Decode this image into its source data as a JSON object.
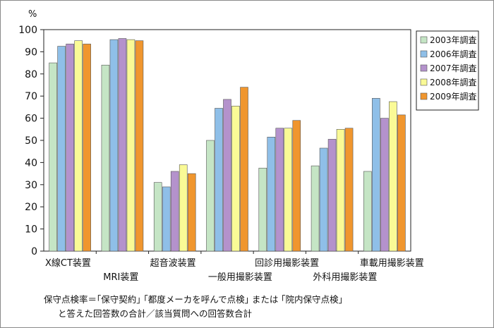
{
  "chart_data": {
    "type": "bar",
    "y_unit_label": "%",
    "ylim": [
      0,
      100
    ],
    "yticks": [
      0,
      10,
      20,
      30,
      40,
      50,
      60,
      70,
      80,
      90,
      100
    ],
    "grid": false,
    "legend_position": "right",
    "categories": [
      "X線CT装置",
      "MRI装置",
      "超音波装置",
      "一般用撮影装置",
      "回診用撮影装置",
      "外科用撮影装置",
      "車載用撮影装置"
    ],
    "series": [
      {
        "name": "2003年調査",
        "color": "#c5e5c5",
        "values": [
          85,
          84,
          31,
          50,
          37.5,
          38.5,
          36
        ]
      },
      {
        "name": "2006年調査",
        "color": "#8fbfe8",
        "values": [
          92.5,
          95.5,
          29,
          64.5,
          51.5,
          46.5,
          69
        ]
      },
      {
        "name": "2007年調査",
        "color": "#b492cc",
        "values": [
          93.5,
          96,
          36,
          68.5,
          55.5,
          50.5,
          60
        ]
      },
      {
        "name": "2008年調査",
        "color": "#fafa96",
        "values": [
          95,
          95.5,
          39,
          65.5,
          55.5,
          55,
          67.5
        ]
      },
      {
        "name": "2009年調査",
        "color": "#f0962e",
        "values": [
          93.5,
          95,
          35,
          74,
          59,
          55.5,
          61.5
        ]
      }
    ]
  },
  "footnote": {
    "line1": "保守点検率＝｢保守契約｣ ｢都度メーカを呼んで点検｣ または ｢院内保守点検｣",
    "line2": "と答えた回答数の合計／該当質問への回答数合計"
  }
}
